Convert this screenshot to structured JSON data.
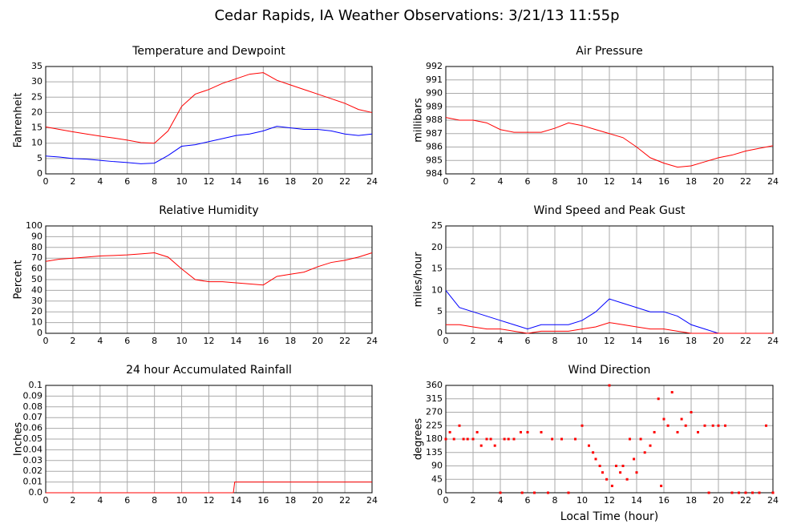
{
  "title": "Cedar Rapids, IA Weather Observations: 3/21/13 11:55p",
  "chart_data": [
    {
      "type": "line",
      "title": "Temperature and Dewpoint",
      "ylabel": "Fahrenheit",
      "x": [
        0,
        1,
        2,
        3,
        4,
        5,
        6,
        7,
        8,
        9,
        10,
        11,
        12,
        13,
        14,
        15,
        16,
        17,
        18,
        19,
        20,
        21,
        22,
        23,
        24
      ],
      "series": [
        {
          "color": "#ff0000",
          "values": [
            15.3,
            14.5,
            13.7,
            13,
            12.3,
            11.7,
            11,
            10.2,
            10,
            14,
            22,
            26,
            27.5,
            29.5,
            31,
            32.5,
            33,
            30.5,
            29,
            27.5,
            26,
            24.5,
            23,
            21,
            20
          ]
        },
        {
          "color": "#0000ff",
          "values": [
            5.8,
            5.5,
            5,
            4.8,
            4.4,
            4,
            3.7,
            3.3,
            3.5,
            6,
            9,
            9.5,
            10.5,
            11.5,
            12.5,
            13,
            14,
            15.5,
            15,
            14.5,
            14.5,
            14,
            13,
            12.5,
            13
          ]
        }
      ],
      "xlim": [
        0,
        24
      ],
      "xticks": [
        0,
        2,
        4,
        6,
        8,
        10,
        12,
        14,
        16,
        18,
        20,
        22,
        24
      ],
      "ylim": [
        0,
        35
      ],
      "yticks": [
        0,
        5,
        10,
        15,
        20,
        25,
        30,
        35
      ],
      "grid": true
    },
    {
      "type": "line",
      "title": "Air Pressure",
      "ylabel": "millibars",
      "x": [
        0,
        1,
        2,
        3,
        4,
        5,
        6,
        7,
        8,
        9,
        10,
        11,
        12,
        13,
        14,
        15,
        16,
        17,
        18,
        19,
        20,
        21,
        22,
        23,
        24
      ],
      "series": [
        {
          "color": "#ff0000",
          "values": [
            988.2,
            988.0,
            988.0,
            987.8,
            987.3,
            987.1,
            987.1,
            987.1,
            987.4,
            987.8,
            987.6,
            987.3,
            987.0,
            986.7,
            986.0,
            985.2,
            984.8,
            984.5,
            984.6,
            984.9,
            985.2,
            985.4,
            985.7,
            985.9,
            986.1
          ]
        }
      ],
      "xlim": [
        0,
        24
      ],
      "xticks": [
        0,
        2,
        4,
        6,
        8,
        10,
        12,
        14,
        16,
        18,
        20,
        22,
        24
      ],
      "ylim": [
        984,
        992
      ],
      "yticks": [
        984,
        985,
        986,
        987,
        988,
        989,
        990,
        991,
        992
      ],
      "grid": true
    },
    {
      "type": "line",
      "title": "Relative Humidity",
      "ylabel": "Percent",
      "x": [
        0,
        1,
        2,
        3,
        4,
        5,
        6,
        7,
        8,
        9,
        10,
        11,
        12,
        13,
        14,
        15,
        16,
        17,
        18,
        19,
        20,
        21,
        22,
        23,
        24
      ],
      "series": [
        {
          "color": "#ff0000",
          "values": [
            67,
            69,
            70,
            71,
            72,
            72.5,
            73,
            74,
            75,
            71,
            60,
            50,
            48,
            48,
            47,
            46,
            45,
            53,
            55,
            57,
            62,
            66,
            68,
            71,
            75
          ]
        }
      ],
      "xlim": [
        0,
        24
      ],
      "xticks": [
        0,
        2,
        4,
        6,
        8,
        10,
        12,
        14,
        16,
        18,
        20,
        22,
        24
      ],
      "ylim": [
        0,
        100
      ],
      "yticks": [
        0,
        10,
        20,
        30,
        40,
        50,
        60,
        70,
        80,
        90,
        100
      ],
      "grid": true
    },
    {
      "type": "line",
      "title": "Wind Speed and Peak Gust",
      "ylabel": "miles/hour",
      "x": [
        0,
        1,
        2,
        3,
        4,
        5,
        6,
        7,
        8,
        9,
        10,
        11,
        12,
        13,
        14,
        15,
        16,
        17,
        18,
        19,
        20,
        21,
        22,
        23,
        24
      ],
      "series": [
        {
          "color": "#0000ff",
          "values": [
            10,
            6,
            5,
            4,
            3,
            2,
            1,
            2,
            2,
            2,
            3,
            5,
            8,
            7,
            6,
            5,
            5,
            4,
            2,
            1,
            0,
            0,
            0,
            0,
            0
          ]
        },
        {
          "color": "#ff0000",
          "values": [
            2,
            2,
            1.5,
            1,
            1,
            0.5,
            0,
            0.5,
            0.5,
            0.5,
            1,
            1.5,
            2.5,
            2,
            1.5,
            1,
            1,
            0.5,
            0,
            0,
            0,
            0,
            0,
            0,
            0
          ]
        }
      ],
      "xlim": [
        0,
        24
      ],
      "xticks": [
        0,
        2,
        4,
        6,
        8,
        10,
        12,
        14,
        16,
        18,
        20,
        22,
        24
      ],
      "ylim": [
        0,
        25
      ],
      "yticks": [
        0,
        5,
        10,
        15,
        20,
        25
      ],
      "grid": true
    },
    {
      "type": "line",
      "title": "24 hour Accumulated Rainfall",
      "ylabel": "Inches",
      "x": [
        0,
        13.8,
        13.9,
        24
      ],
      "series": [
        {
          "color": "#ff0000",
          "values": [
            0,
            0,
            0.01,
            0.01
          ]
        }
      ],
      "xlim": [
        0,
        24
      ],
      "xticks": [
        0,
        2,
        4,
        6,
        8,
        10,
        12,
        14,
        16,
        18,
        20,
        22,
        24
      ],
      "ylim": [
        0,
        0.1
      ],
      "yticks": [
        {
          "value": 0,
          "label": "0.0"
        },
        0.01,
        0.02,
        0.03,
        0.04,
        0.05,
        0.06,
        0.07,
        0.08,
        0.09,
        0.1
      ],
      "grid": true
    },
    {
      "type": "scatter",
      "title": "Wind Direction",
      "ylabel": "degrees",
      "xlabel": "Local Time (hour)",
      "x": [
        0,
        0.3,
        0.6,
        1,
        1.3,
        1.6,
        2,
        2.3,
        2.6,
        3,
        3.3,
        3.6,
        4,
        4.3,
        4.6,
        5,
        5.5,
        5.6,
        6,
        6.5,
        7,
        7.5,
        7.8,
        8.5,
        9,
        9.5,
        10,
        10.5,
        10.8,
        11,
        11.3,
        11.5,
        11.8,
        12,
        12.2,
        12.5,
        12.8,
        13,
        13.3,
        13.5,
        13.8,
        14,
        14.3,
        14.6,
        15,
        15.3,
        15.6,
        15.8,
        16,
        16.3,
        16.6,
        17,
        17.3,
        17.6,
        18,
        18.5,
        19,
        19.3,
        19.6,
        20,
        20.5,
        21,
        21.5,
        22,
        22.5,
        23,
        23.5,
        24
      ],
      "series": [
        {
          "color": "#ff0000",
          "values": [
            180,
            203,
            180,
            225,
            180,
            180,
            180,
            203,
            158,
            180,
            180,
            158,
            0,
            180,
            180,
            180,
            203,
            0,
            203,
            0,
            203,
            0,
            180,
            180,
            0,
            180,
            225,
            158,
            135,
            113,
            90,
            68,
            45,
            360,
            23,
            90,
            68,
            90,
            45,
            180,
            113,
            68,
            180,
            135,
            158,
            203,
            315,
            23,
            247,
            225,
            337,
            203,
            247,
            225,
            270,
            203,
            225,
            0,
            225,
            225,
            225,
            0,
            0,
            0,
            0,
            0,
            225,
            0
          ]
        }
      ],
      "xlim": [
        0,
        24
      ],
      "xticks": [
        0,
        2,
        4,
        6,
        8,
        10,
        12,
        14,
        16,
        18,
        20,
        22,
        24
      ],
      "ylim": [
        0,
        360
      ],
      "yticks": [
        0,
        45,
        90,
        135,
        180,
        225,
        270,
        315,
        360
      ],
      "grid": true
    }
  ]
}
